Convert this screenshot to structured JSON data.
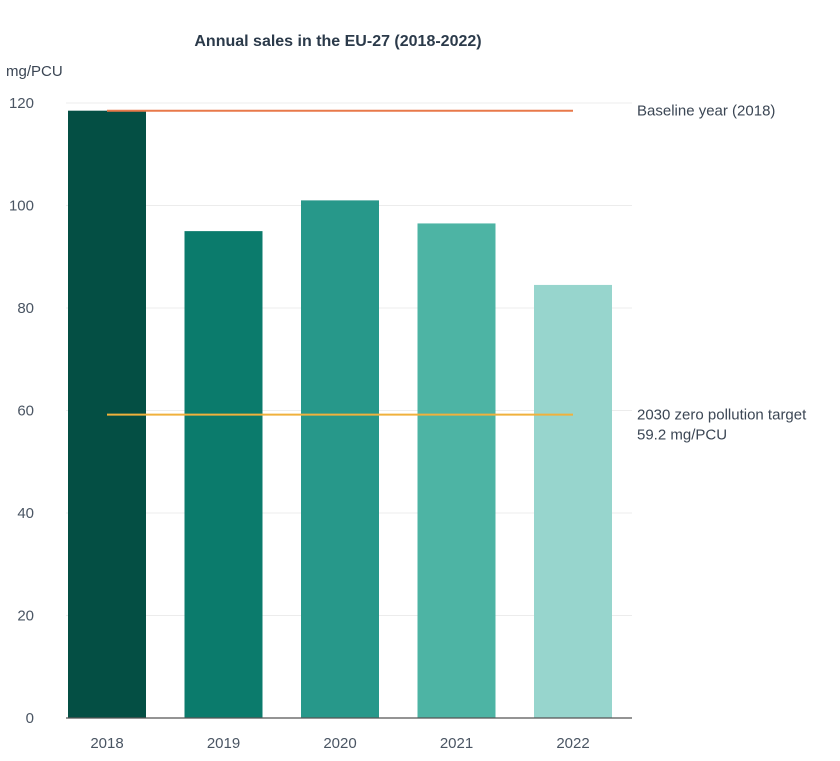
{
  "chart_data": {
    "type": "bar",
    "title": "Annual sales in the EU-27 (2018-2022)",
    "ylabel": "mg/PCU",
    "xlabel": "",
    "ylim": [
      0,
      120
    ],
    "yticks": [
      0,
      20,
      40,
      60,
      80,
      100,
      120
    ],
    "categories": [
      "2018",
      "2019",
      "2020",
      "2021",
      "2022"
    ],
    "values": [
      118.5,
      95,
      101,
      96.5,
      84.5
    ],
    "bar_colors": [
      "#044f44",
      "#0b7b6c",
      "#27988a",
      "#4db4a4",
      "#97d5cd"
    ],
    "reference_lines": [
      {
        "value": 118.5,
        "color": "#e8794a",
        "label": [
          "Baseline year (2018)"
        ]
      },
      {
        "value": 59.2,
        "color": "#f0b13c",
        "label": [
          "2030 zero pollution target",
          "59.2 mg/PCU"
        ]
      }
    ],
    "grid": true
  }
}
